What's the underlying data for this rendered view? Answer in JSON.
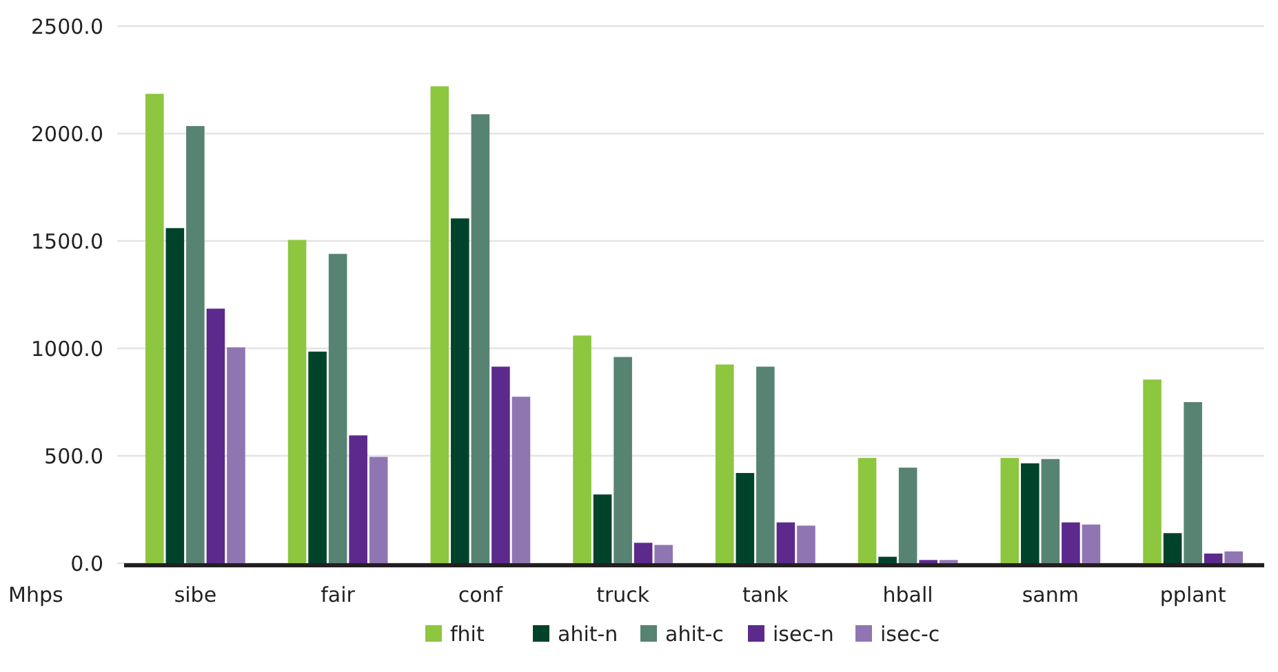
{
  "chart_data": {
    "type": "bar",
    "xlabel": "Mhps",
    "categories": [
      "sibe",
      "fair",
      "conf",
      "truck",
      "tank",
      "hball",
      "sanm",
      "pplant"
    ],
    "series": [
      {
        "name": "fhit",
        "color": "#8dc63f",
        "values": [
          2185,
          1505,
          2220,
          1060,
          925,
          490,
          490,
          855
        ]
      },
      {
        "name": "ahit-n",
        "color": "#00432b",
        "values": [
          1560,
          985,
          1605,
          320,
          420,
          30,
          465,
          140
        ]
      },
      {
        "name": "ahit-c",
        "color": "#578373",
        "values": [
          2035,
          1440,
          2090,
          960,
          915,
          445,
          485,
          750
        ]
      },
      {
        "name": "isec-n",
        "color": "#5c2a8c",
        "values": [
          1185,
          595,
          915,
          95,
          190,
          15,
          190,
          45
        ]
      },
      {
        "name": "isec-c",
        "color": "#8f76b3",
        "values": [
          1005,
          495,
          775,
          85,
          175,
          15,
          180,
          55
        ]
      }
    ],
    "ylim": [
      0,
      2500
    ],
    "yticks": [
      {
        "value": 0,
        "label": "0.0"
      },
      {
        "value": 500,
        "label": "500.0"
      },
      {
        "value": 1000,
        "label": "1000.0"
      },
      {
        "value": 1500,
        "label": "1500.0"
      },
      {
        "value": 2000,
        "label": "2000.0"
      },
      {
        "value": 2500,
        "label": "2500.0"
      }
    ],
    "grid": "y",
    "legend": "bottom"
  }
}
